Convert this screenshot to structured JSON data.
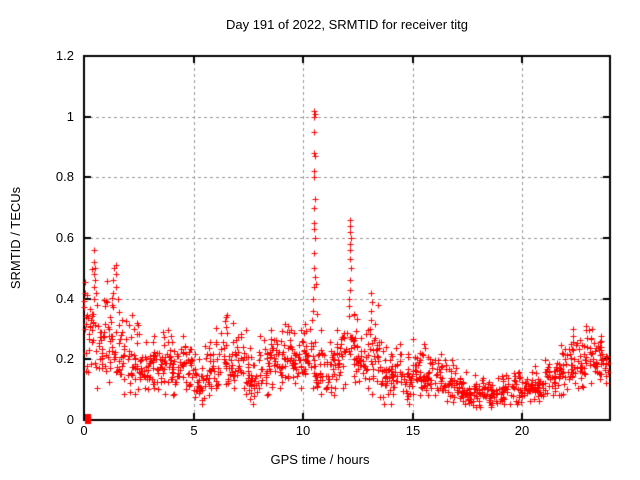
{
  "chart_data": {
    "type": "scatter",
    "title": "Day 191 of 2022, SRMTID for receiver titg",
    "xlabel": "GPS time / hours",
    "ylabel": "SRMTID / TECUs",
    "xlim": [
      0,
      24
    ],
    "ylim": [
      0,
      1.2
    ],
    "xticks": [
      0,
      5,
      10,
      15,
      20
    ],
    "xtick_labels": [
      "0",
      "5",
      "10",
      "15",
      "20"
    ],
    "yticks": [
      0,
      0.2,
      0.4,
      0.6,
      0.8,
      1,
      1.2
    ],
    "ytick_labels": [
      "0",
      "0.2",
      "0.4",
      "0.6",
      "0.8",
      "1",
      "1.2"
    ],
    "grid": true,
    "legend": "none",
    "marker": "plus",
    "marker_color": "#ff0000",
    "grid_color": "#999999",
    "border_color": "#000000",
    "background_color": "#ffffff",
    "points_per_bin": 28,
    "band_bins": [
      [
        0.0,
        0.5,
        0.15,
        0.5
      ],
      [
        0.5,
        1.0,
        0.1,
        0.4
      ],
      [
        1.0,
        1.5,
        0.12,
        0.46
      ],
      [
        1.5,
        2.0,
        0.08,
        0.36
      ],
      [
        2.0,
        2.5,
        0.08,
        0.35
      ],
      [
        2.5,
        3.0,
        0.1,
        0.26
      ],
      [
        3.0,
        3.5,
        0.1,
        0.28
      ],
      [
        3.5,
        4.0,
        0.08,
        0.3
      ],
      [
        4.0,
        4.5,
        0.08,
        0.26
      ],
      [
        4.5,
        5.0,
        0.1,
        0.28
      ],
      [
        5.0,
        5.5,
        0.05,
        0.22
      ],
      [
        5.5,
        6.0,
        0.08,
        0.26
      ],
      [
        6.0,
        6.5,
        0.1,
        0.33
      ],
      [
        6.5,
        7.0,
        0.1,
        0.35
      ],
      [
        7.0,
        7.5,
        0.08,
        0.3
      ],
      [
        7.5,
        8.0,
        0.05,
        0.24
      ],
      [
        8.0,
        8.5,
        0.08,
        0.28
      ],
      [
        8.5,
        9.0,
        0.1,
        0.3
      ],
      [
        9.0,
        9.5,
        0.12,
        0.32
      ],
      [
        9.5,
        10.0,
        0.1,
        0.3
      ],
      [
        10.0,
        10.5,
        0.1,
        0.32
      ],
      [
        10.5,
        11.0,
        0.08,
        0.3
      ],
      [
        11.0,
        11.5,
        0.08,
        0.26
      ],
      [
        11.5,
        12.0,
        0.1,
        0.3
      ],
      [
        12.0,
        12.5,
        0.12,
        0.38
      ],
      [
        12.5,
        13.0,
        0.1,
        0.3
      ],
      [
        13.0,
        13.5,
        0.08,
        0.32
      ],
      [
        13.5,
        14.0,
        0.05,
        0.26
      ],
      [
        14.0,
        14.5,
        0.05,
        0.24
      ],
      [
        14.5,
        15.0,
        0.05,
        0.22
      ],
      [
        15.0,
        15.5,
        0.08,
        0.27
      ],
      [
        15.5,
        16.0,
        0.08,
        0.24
      ],
      [
        16.0,
        16.5,
        0.08,
        0.22
      ],
      [
        16.5,
        17.0,
        0.06,
        0.2
      ],
      [
        17.0,
        17.5,
        0.05,
        0.16
      ],
      [
        17.5,
        18.0,
        0.04,
        0.15
      ],
      [
        18.0,
        18.5,
        0.04,
        0.14
      ],
      [
        18.5,
        19.0,
        0.04,
        0.14
      ],
      [
        19.0,
        19.5,
        0.05,
        0.15
      ],
      [
        19.5,
        20.0,
        0.05,
        0.16
      ],
      [
        20.0,
        20.5,
        0.06,
        0.16
      ],
      [
        20.5,
        21.0,
        0.06,
        0.18
      ],
      [
        21.0,
        21.5,
        0.08,
        0.2
      ],
      [
        21.5,
        22.0,
        0.08,
        0.25
      ],
      [
        22.0,
        22.5,
        0.1,
        0.28
      ],
      [
        22.5,
        23.0,
        0.1,
        0.3
      ],
      [
        23.0,
        23.5,
        0.12,
        0.3
      ],
      [
        23.5,
        23.9,
        0.12,
        0.28
      ]
    ],
    "spike_points": [
      [
        0.18,
        0.0
      ],
      [
        0.2,
        0.01
      ],
      [
        0.05,
        0.42
      ],
      [
        0.06,
        0.3
      ],
      [
        0.07,
        0.22
      ],
      [
        0.08,
        0.16
      ],
      [
        0.42,
        0.35
      ],
      [
        0.44,
        0.4
      ],
      [
        0.45,
        0.44
      ],
      [
        0.45,
        0.48
      ],
      [
        0.44,
        0.52
      ],
      [
        0.46,
        0.56
      ],
      [
        0.48,
        0.5
      ],
      [
        0.5,
        0.46
      ],
      [
        0.55,
        0.42
      ],
      [
        0.6,
        0.38
      ],
      [
        1.3,
        0.38
      ],
      [
        1.32,
        0.42
      ],
      [
        1.34,
        0.46
      ],
      [
        1.36,
        0.5
      ],
      [
        1.44,
        0.44
      ],
      [
        1.46,
        0.48
      ],
      [
        1.48,
        0.51
      ],
      [
        1.55,
        0.4
      ],
      [
        2.3,
        0.3
      ],
      [
        2.4,
        0.32
      ],
      [
        3.6,
        0.29
      ],
      [
        6.5,
        0.34
      ],
      [
        9.3,
        0.31
      ],
      [
        10.3,
        0.3
      ],
      [
        10.4,
        0.33
      ],
      [
        10.45,
        0.36
      ],
      [
        10.47,
        0.4
      ],
      [
        10.5,
        0.44
      ],
      [
        10.52,
        0.47
      ],
      [
        10.48,
        0.5
      ],
      [
        10.5,
        0.55
      ],
      [
        10.52,
        0.6
      ],
      [
        10.5,
        0.63
      ],
      [
        10.48,
        0.65
      ],
      [
        10.5,
        0.7
      ],
      [
        10.52,
        0.73
      ],
      [
        10.5,
        0.8
      ],
      [
        10.48,
        0.82
      ],
      [
        10.52,
        0.87
      ],
      [
        10.5,
        0.88
      ],
      [
        10.5,
        0.95
      ],
      [
        10.48,
        1.0
      ],
      [
        10.52,
        1.01
      ],
      [
        10.5,
        1.02
      ],
      [
        10.6,
        0.45
      ],
      [
        10.65,
        0.35
      ],
      [
        12.1,
        0.4
      ],
      [
        12.12,
        0.43
      ],
      [
        12.15,
        0.46
      ],
      [
        12.18,
        0.5
      ],
      [
        12.15,
        0.53
      ],
      [
        12.12,
        0.56
      ],
      [
        12.15,
        0.58
      ],
      [
        12.18,
        0.6
      ],
      [
        12.15,
        0.62
      ],
      [
        12.12,
        0.64
      ],
      [
        12.15,
        0.66
      ],
      [
        12.3,
        0.35
      ],
      [
        13.05,
        0.3
      ],
      [
        13.08,
        0.33
      ],
      [
        13.1,
        0.36
      ],
      [
        13.12,
        0.39
      ],
      [
        13.1,
        0.42
      ],
      [
        13.4,
        0.38
      ],
      [
        14.4,
        0.25
      ],
      [
        15.5,
        0.25
      ],
      [
        22.3,
        0.3
      ],
      [
        22.9,
        0.31
      ],
      [
        23.2,
        0.3
      ]
    ]
  }
}
